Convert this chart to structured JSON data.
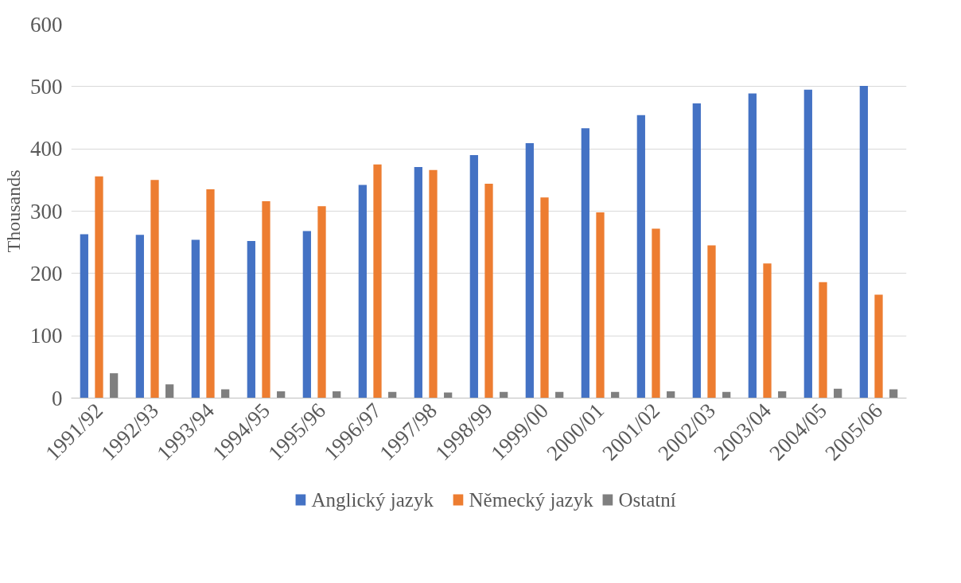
{
  "chart_data": {
    "type": "bar",
    "ylabel": "Thousands",
    "categories": [
      "1991/92",
      "1992/93",
      "1993/94",
      "1994/95",
      "1995/96",
      "1996/97",
      "1997/98",
      "1998/99",
      "1999/00",
      "2000/01",
      "2001/02",
      "2002/03",
      "2003/04",
      "2004/05",
      "2005/06"
    ],
    "series": [
      {
        "name": "Anglický jazyk",
        "color": "#4472c4",
        "values": [
          263,
          262,
          254,
          252,
          268,
          342,
          371,
          390,
          409,
          433,
          454,
          473,
          489,
          495,
          501
        ]
      },
      {
        "name": "Německý jazyk",
        "color": "#ed7d31",
        "values": [
          356,
          350,
          335,
          316,
          308,
          375,
          366,
          344,
          322,
          298,
          272,
          245,
          216,
          186,
          166
        ]
      },
      {
        "name": "Ostatní",
        "color": "#7f7f7f",
        "values": [
          40,
          22,
          14,
          11,
          11,
          10,
          9,
          10,
          10,
          10,
          11,
          10,
          11,
          15,
          14
        ]
      }
    ],
    "ylim": [
      0,
      600
    ],
    "yticks": [
      0,
      100,
      200,
      300,
      400,
      500,
      600
    ],
    "grid": "y",
    "legend": "bottom"
  }
}
